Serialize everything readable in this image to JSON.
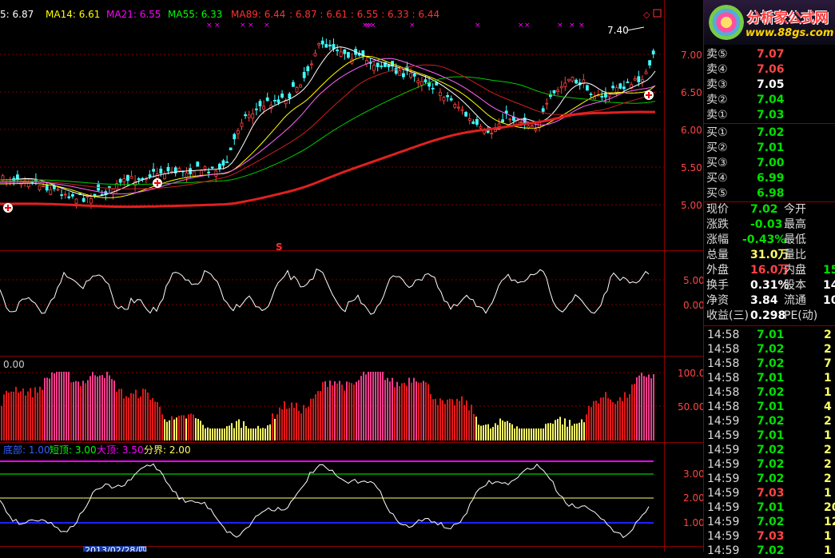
{
  "ma_header": {
    "items": [
      {
        "label": "5: 6.87",
        "color": "#ffffff"
      },
      {
        "label": "MA14: 6.61",
        "color": "#ffff00"
      },
      {
        "label": "MA21: 6.55",
        "color": "#ff00ff"
      },
      {
        "label": "MA55: 6.33",
        "color": "#00ff00"
      },
      {
        "label": "MA89: 6.44",
        "color": "#ff3030"
      },
      {
        "label": ": 6.87 : 6.61 : 6.55 : 6.33 : 6.44",
        "color": "#ff3030"
      }
    ]
  },
  "main_chart": {
    "high_label": "7.40",
    "signal_mark": "S",
    "y_ticks": [
      "7.00",
      "6.50",
      "6.00",
      "5.50",
      "5.00"
    ]
  },
  "osc1": {
    "y_ticks": [
      "5.00",
      "0.00"
    ]
  },
  "osc2": {
    "top_value": "0.00",
    "y_ticks": [
      "100.0",
      "50.00"
    ]
  },
  "osc3": {
    "legend": [
      {
        "label": "底部: 1.00",
        "color": "#3060ff"
      },
      {
        "label": "短顶: 3.00",
        "color": "#00ff00"
      },
      {
        "label": "大顶: 3.50",
        "color": "#ff00ff"
      },
      {
        "label": "分界: 2.00",
        "color": "#ffff66"
      }
    ],
    "y_ticks": [
      "3.00",
      "2.00",
      "1.00"
    ]
  },
  "date_label": "2013/02/28/四",
  "logo": {
    "title": "分析家公式网",
    "url": "www.88gs.com"
  },
  "quote": {
    "asks": [
      {
        "label": "卖⑤",
        "price": "7.07",
        "color": "#ff4444"
      },
      {
        "label": "卖④",
        "price": "7.06",
        "color": "#ff4444"
      },
      {
        "label": "卖③",
        "price": "7.05",
        "color": "#ffffff"
      },
      {
        "label": "卖②",
        "price": "7.04",
        "color": "#00e000"
      },
      {
        "label": "卖①",
        "price": "7.03",
        "color": "#00e000"
      }
    ],
    "bids": [
      {
        "label": "买①",
        "price": "7.02",
        "color": "#00e000"
      },
      {
        "label": "买②",
        "price": "7.01",
        "color": "#00e000"
      },
      {
        "label": "买③",
        "price": "7.00",
        "color": "#00e000"
      },
      {
        "label": "买④",
        "price": "6.99",
        "color": "#00e000"
      },
      {
        "label": "买⑤",
        "price": "6.98",
        "color": "#00e000"
      }
    ],
    "stats": [
      {
        "l1": "现价",
        "v1": "7.02",
        "c1": "#00e000",
        "l2": "今开"
      },
      {
        "l1": "涨跌",
        "v1": "-0.03",
        "c1": "#00e000",
        "l2": "最高"
      },
      {
        "l1": "涨幅",
        "v1": "-0.43%",
        "c1": "#00e000",
        "l2": "最低"
      },
      {
        "l1": "总量",
        "v1": "31.0万",
        "c1": "#ffff66",
        "l2": "量比"
      },
      {
        "l1": "外盘",
        "v1": "16.0万",
        "c1": "#ff4444",
        "l2": "内盘",
        "v2": "15",
        "c2": "#00e000"
      },
      {
        "l1": "换手",
        "v1": "0.31%",
        "c1": "#ffffff",
        "l2": "股本",
        "v2": "14",
        "c2": "#ffffff"
      },
      {
        "l1": "净资",
        "v1": "3.84",
        "c1": "#ffffff",
        "l2": "流通",
        "v2": "10",
        "c2": "#ffffff"
      },
      {
        "l1": "收益(三)",
        "v1": "0.298",
        "c1": "#ffffff",
        "l2": "PE(动)"
      }
    ],
    "ticks": [
      {
        "time": "14:58",
        "price": "7.01",
        "vol": "2"
      },
      {
        "time": "14:58",
        "price": "7.02",
        "vol": "2"
      },
      {
        "time": "14:58",
        "price": "7.02",
        "vol": "7"
      },
      {
        "time": "14:58",
        "price": "7.01",
        "vol": "1"
      },
      {
        "time": "14:58",
        "price": "7.02",
        "vol": "1"
      },
      {
        "time": "14:58",
        "price": "7.01",
        "vol": "4"
      },
      {
        "time": "14:59",
        "price": "7.02",
        "vol": "2"
      },
      {
        "time": "14:59",
        "price": "7.01",
        "vol": "1"
      },
      {
        "time": "14:59",
        "price": "7.02",
        "vol": "2"
      },
      {
        "time": "14:59",
        "price": "7.02",
        "vol": "2"
      },
      {
        "time": "14:59",
        "price": "7.02",
        "vol": "2"
      },
      {
        "time": "14:59",
        "price": "7.03",
        "vol": "1"
      },
      {
        "time": "14:59",
        "price": "7.01",
        "vol": "20"
      },
      {
        "time": "14:59",
        "price": "7.02",
        "vol": "12"
      },
      {
        "time": "14:59",
        "price": "7.03",
        "vol": "1"
      },
      {
        "time": "14:59",
        "price": "7.02",
        "vol": "1"
      }
    ]
  }
}
